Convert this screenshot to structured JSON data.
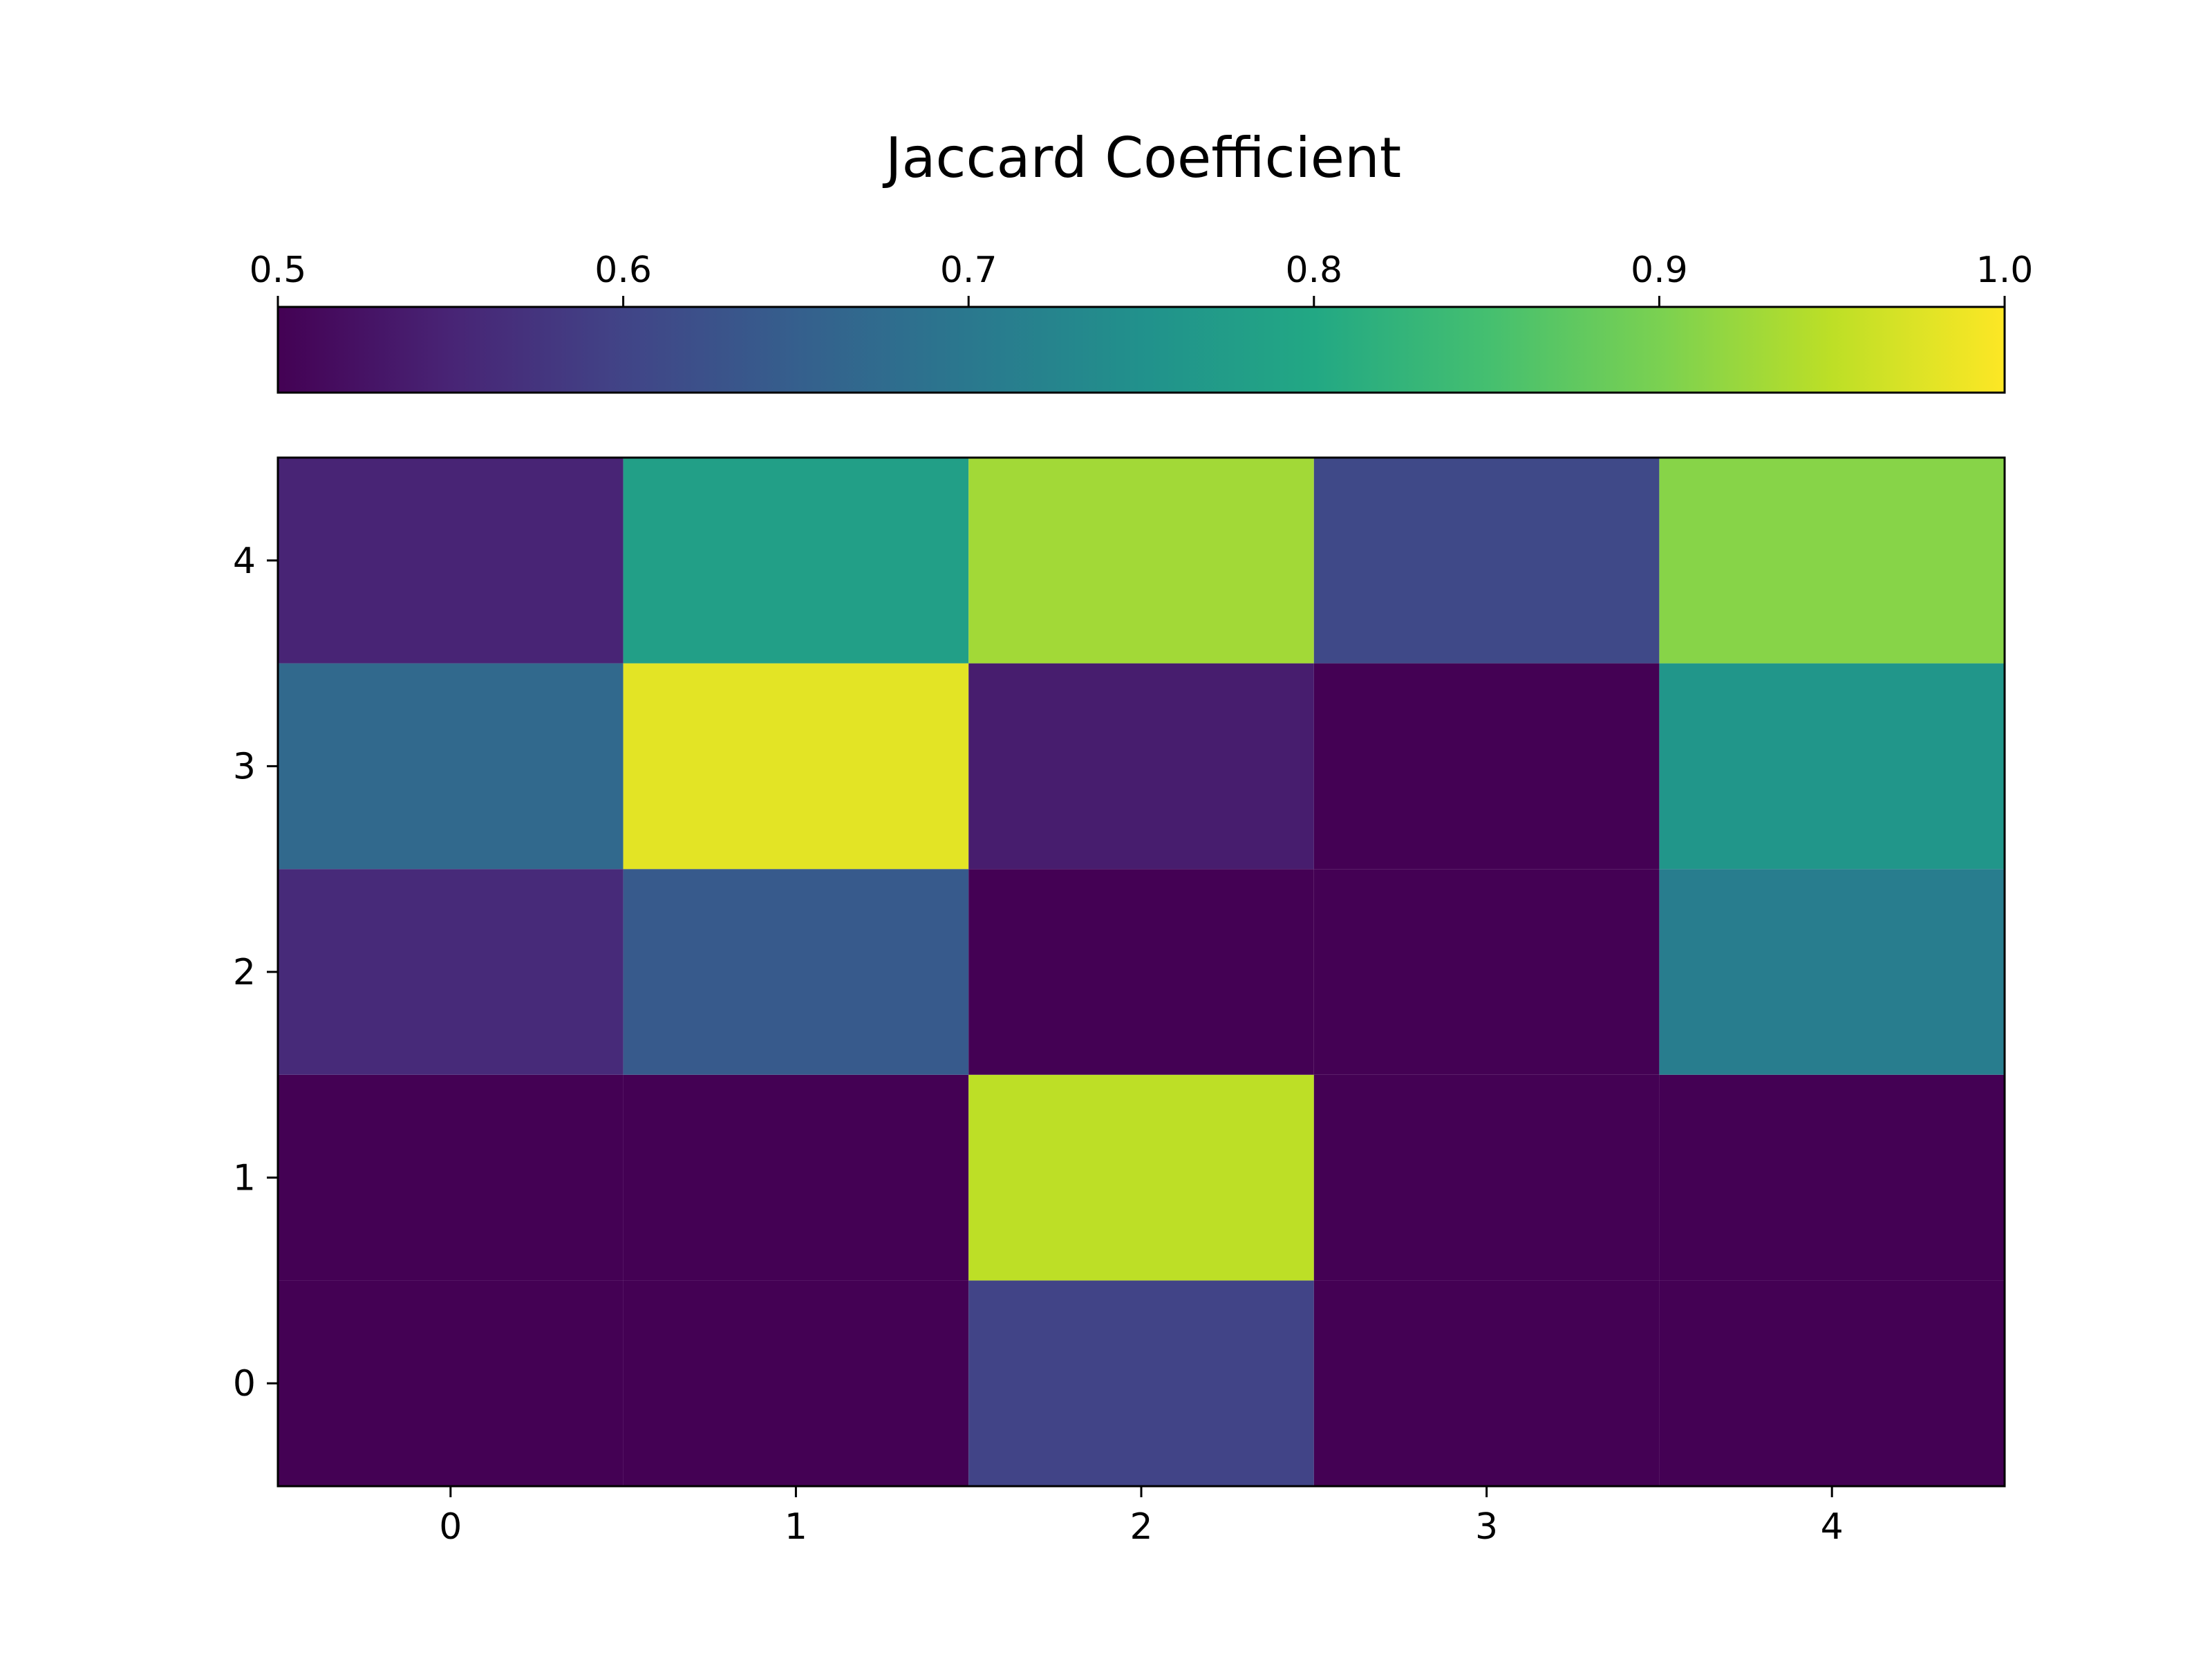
{
  "chart_data": {
    "type": "heatmap",
    "title": "Jaccard Coefficient",
    "xlabel": "",
    "ylabel": "",
    "x_ticks": [
      "0",
      "1",
      "2",
      "3",
      "4"
    ],
    "y_ticks": [
      "0",
      "1",
      "2",
      "3",
      "4"
    ],
    "xlim": [
      -0.5,
      4.5
    ],
    "ylim": [
      -0.5,
      4.5
    ],
    "grid": false,
    "colormap": "viridis",
    "colorbar": {
      "orientation": "horizontal",
      "location": "top",
      "range": [
        0.5,
        1.0
      ],
      "ticks": [
        "0.5",
        "0.6",
        "0.7",
        "0.8",
        "0.9",
        "1.0"
      ]
    },
    "rows_bottom_to_top": [
      [
        0.5,
        0.5,
        0.6,
        0.5,
        0.5
      ],
      [
        0.5,
        0.5,
        0.95,
        0.5,
        0.5
      ],
      [
        0.56,
        0.64,
        0.5,
        0.5,
        0.71
      ],
      [
        0.67,
        0.98,
        0.54,
        0.5,
        0.76
      ],
      [
        0.55,
        0.78,
        0.93,
        0.61,
        0.91
      ]
    ]
  }
}
